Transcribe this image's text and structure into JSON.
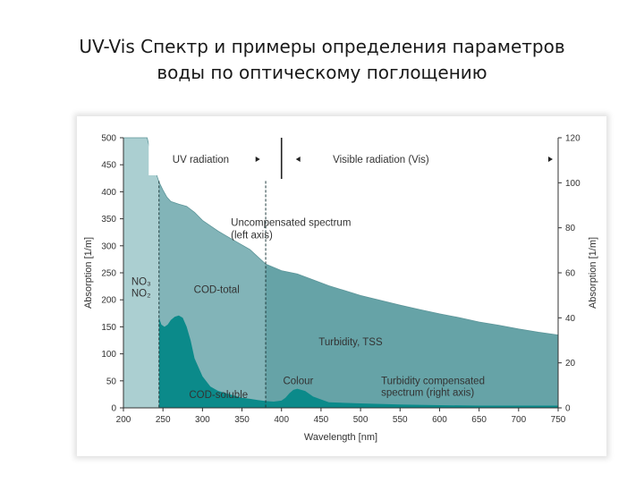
{
  "slide": {
    "title_line1": "UV-Vis Спектр и примеры определения параметров",
    "title_line2": "воды по оптическому поглощению"
  },
  "chart_data": {
    "type": "area",
    "xlabel": "Wavelength [nm]",
    "ylabel_left": "Absorption [1/m]",
    "ylabel_right": "Absorption [1/m]",
    "xlim": [
      200,
      750
    ],
    "ylim_left": [
      0,
      500
    ],
    "ylim_right": [
      0,
      120
    ],
    "x_ticks": [
      200,
      250,
      300,
      350,
      400,
      450,
      500,
      550,
      600,
      650,
      700,
      750
    ],
    "y_ticks_left": [
      0,
      50,
      100,
      150,
      200,
      250,
      300,
      350,
      400,
      450,
      500
    ],
    "y_ticks_right": [
      0,
      20,
      40,
      60,
      80,
      100,
      120
    ],
    "grid": false,
    "region_boundaries": [
      245,
      380
    ],
    "uv_vis_divider": 400,
    "series": [
      {
        "name": "Uncompensated spectrum (left axis)",
        "color": "#6fa6aa",
        "x": [
          200,
          230,
          235,
          240,
          245,
          250,
          255,
          260,
          270,
          280,
          290,
          300,
          320,
          340,
          360,
          380,
          400,
          420,
          440,
          460,
          480,
          500,
          525,
          550,
          575,
          600,
          625,
          650,
          675,
          700,
          725,
          750
        ],
        "y": [
          500,
          500,
          470,
          440,
          418,
          403,
          390,
          382,
          377,
          373,
          362,
          347,
          327,
          310,
          293,
          266,
          254,
          248,
          237,
          226,
          217,
          208,
          199,
          190,
          182,
          174,
          167,
          159,
          153,
          146,
          140,
          135
        ]
      },
      {
        "name": "Turbidity compensated spectrum (right axis)",
        "color": "#0b8a8a",
        "x": [
          245,
          248,
          252,
          256,
          260,
          265,
          270,
          275,
          280,
          285,
          290,
          300,
          310,
          320,
          330,
          340,
          350,
          360,
          370,
          380,
          390,
          400,
          405,
          410,
          415,
          420,
          430,
          440,
          460,
          500,
          550,
          600,
          650,
          700,
          750
        ],
        "y": [
          40,
          37,
          36,
          37,
          39,
          40.5,
          41,
          40,
          36,
          30,
          22,
          14,
          9.5,
          7.5,
          6.5,
          5.5,
          4.5,
          4,
          3.5,
          3,
          2.8,
          3.2,
          4.5,
          6.5,
          8,
          8.5,
          7.5,
          5,
          2.5,
          2,
          1.5,
          1.2,
          1,
          1,
          1
        ]
      }
    ],
    "header_labels": {
      "uv": "UV radiation",
      "vis": "Visible radiation (Vis)"
    },
    "annotations": {
      "uncompensated_line1": "Uncompensated spectrum",
      "uncompensated_line2": "(left axis)",
      "no3": "NO₃",
      "no2": "NO₂",
      "cod_total": "COD-total",
      "turbidity_tss": "Turbidity, TSS",
      "colour": "Colour",
      "cod_soluble": "COD-soluble",
      "compensated_line1": "Turbidity compensated",
      "compensated_line2": "spectrum (right axis)"
    }
  }
}
